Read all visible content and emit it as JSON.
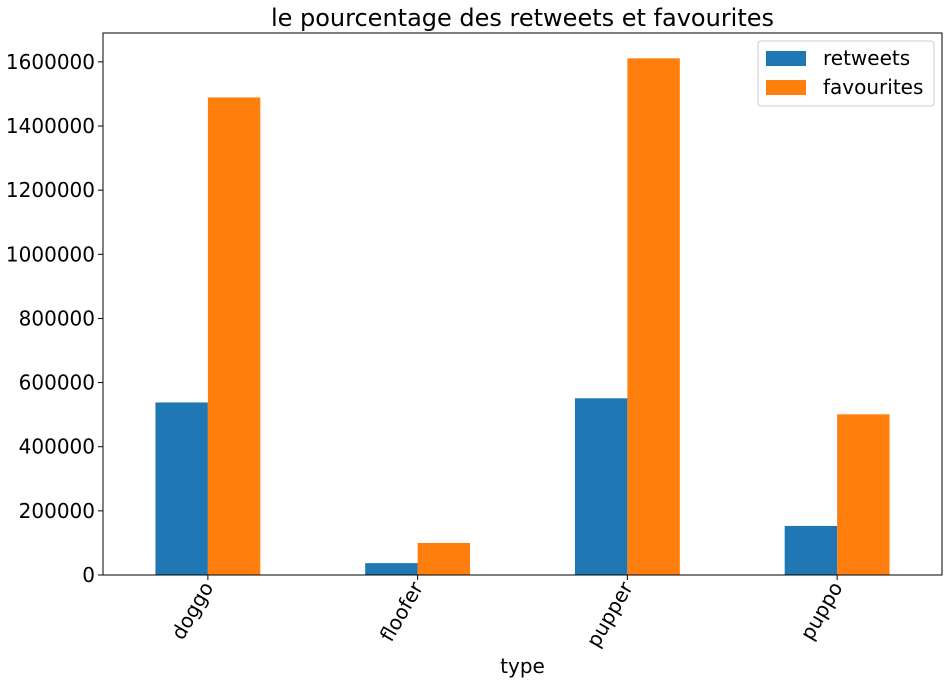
{
  "chart_data": {
    "type": "bar",
    "title": "le pourcentage des retweets et favourites",
    "xlabel": "type",
    "ylabel": "",
    "categories": [
      "doggo",
      "floofer",
      "pupper",
      "puppo"
    ],
    "series": [
      {
        "name": "retweets",
        "values": [
          538000,
          37000,
          551000,
          153000
        ],
        "color": "#1f77b4"
      },
      {
        "name": "favourites",
        "values": [
          1489000,
          100000,
          1611000,
          501000
        ],
        "color": "#ff7f0e"
      }
    ],
    "ylim": [
      0,
      1690000
    ],
    "yticks": [
      0,
      200000,
      400000,
      600000,
      800000,
      1000000,
      1200000,
      1400000,
      1600000
    ],
    "ytick_labels": [
      "0",
      "200000",
      "400000",
      "600000",
      "800000",
      "1000000",
      "1200000",
      "1400000",
      "1600000"
    ],
    "grid": false,
    "legend_position": "top-right",
    "xtick_rotation": "rotated"
  }
}
